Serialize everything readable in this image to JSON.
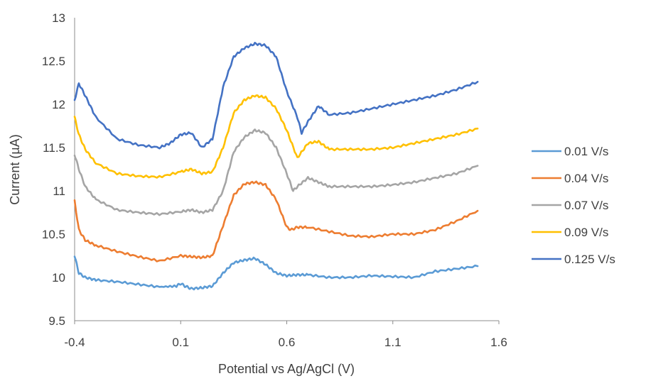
{
  "chart_data": {
    "type": "line",
    "title": "",
    "xlabel": "Potential vs Ag/AgCl (V)",
    "ylabel": "Current (µA)",
    "xlim": [
      -0.4,
      1.6
    ],
    "ylim": [
      9.5,
      13
    ],
    "x_ticks": [
      "-0.4",
      "0.1",
      "0.6",
      "1.1",
      "1.6"
    ],
    "y_ticks": [
      "9.5",
      "10",
      "10.5",
      "11",
      "11.5",
      "12",
      "12.5",
      "13"
    ],
    "grid": false,
    "legend_position": "right",
    "series": [
      {
        "name": "0.01 V/s",
        "color": "#5B9BD5",
        "x": [
          -0.4,
          -0.38,
          -0.35,
          -0.3,
          -0.2,
          -0.1,
          0.0,
          0.08,
          0.1,
          0.12,
          0.15,
          0.2,
          0.25,
          0.3,
          0.35,
          0.4,
          0.45,
          0.5,
          0.55,
          0.6,
          0.65,
          0.7,
          0.8,
          0.9,
          1.0,
          1.1,
          1.2,
          1.3,
          1.4,
          1.5
        ],
        "y": [
          10.25,
          10.05,
          10.0,
          9.97,
          9.95,
          9.92,
          9.89,
          9.9,
          9.93,
          9.9,
          9.87,
          9.88,
          9.9,
          10.05,
          10.17,
          10.2,
          10.22,
          10.15,
          10.05,
          10.02,
          10.03,
          10.03,
          10.0,
          10.0,
          10.02,
          10.01,
          10.0,
          10.07,
          10.1,
          10.13
        ]
      },
      {
        "name": "0.04 V/s",
        "color": "#ED7D31",
        "x": [
          -0.4,
          -0.38,
          -0.35,
          -0.3,
          -0.2,
          -0.1,
          0.0,
          0.1,
          0.15,
          0.2,
          0.25,
          0.3,
          0.35,
          0.4,
          0.45,
          0.5,
          0.55,
          0.6,
          0.62,
          0.65,
          0.7,
          0.8,
          0.9,
          1.0,
          1.1,
          1.2,
          1.3,
          1.4,
          1.5
        ],
        "y": [
          10.88,
          10.55,
          10.43,
          10.37,
          10.3,
          10.24,
          10.19,
          10.25,
          10.24,
          10.23,
          10.25,
          10.6,
          10.95,
          11.08,
          11.1,
          11.07,
          10.9,
          10.58,
          10.55,
          10.58,
          10.58,
          10.53,
          10.48,
          10.47,
          10.5,
          10.5,
          10.55,
          10.65,
          10.77
        ]
      },
      {
        "name": "0.07 V/s",
        "color": "#A5A5A5",
        "x": [
          -0.4,
          -0.38,
          -0.35,
          -0.3,
          -0.2,
          -0.1,
          0.0,
          0.1,
          0.15,
          0.2,
          0.25,
          0.3,
          0.35,
          0.4,
          0.45,
          0.5,
          0.55,
          0.6,
          0.63,
          0.65,
          0.7,
          0.75,
          0.8,
          0.9,
          1.0,
          1.1,
          1.2,
          1.3,
          1.4,
          1.5
        ],
        "y": [
          11.42,
          11.25,
          11.05,
          10.9,
          10.78,
          10.75,
          10.73,
          10.76,
          10.78,
          10.75,
          10.78,
          11.0,
          11.45,
          11.62,
          11.7,
          11.67,
          11.5,
          11.2,
          11.0,
          11.05,
          11.15,
          11.1,
          11.05,
          11.05,
          11.05,
          11.07,
          11.1,
          11.15,
          11.2,
          11.29
        ]
      },
      {
        "name": "0.09 V/s",
        "color": "#FFC000",
        "x": [
          -0.4,
          -0.38,
          -0.35,
          -0.3,
          -0.2,
          -0.1,
          0.0,
          0.1,
          0.15,
          0.2,
          0.25,
          0.3,
          0.35,
          0.4,
          0.45,
          0.5,
          0.55,
          0.6,
          0.65,
          0.7,
          0.75,
          0.8,
          0.9,
          1.0,
          1.1,
          1.2,
          1.3,
          1.4,
          1.5
        ],
        "y": [
          11.85,
          11.65,
          11.48,
          11.32,
          11.2,
          11.17,
          11.16,
          11.22,
          11.25,
          11.2,
          11.22,
          11.5,
          11.9,
          12.05,
          12.1,
          12.08,
          11.95,
          11.7,
          11.38,
          11.55,
          11.57,
          11.48,
          11.48,
          11.48,
          11.5,
          11.55,
          11.6,
          11.65,
          11.72
        ]
      },
      {
        "name": "0.125 V/s",
        "color": "#4472C4",
        "x": [
          -0.4,
          -0.38,
          -0.35,
          -0.3,
          -0.2,
          -0.1,
          0.0,
          0.05,
          0.1,
          0.15,
          0.2,
          0.25,
          0.3,
          0.35,
          0.4,
          0.45,
          0.5,
          0.55,
          0.6,
          0.65,
          0.67,
          0.7,
          0.75,
          0.8,
          0.9,
          1.0,
          1.1,
          1.2,
          1.3,
          1.4,
          1.5
        ],
        "y": [
          12.05,
          12.24,
          12.1,
          11.85,
          11.6,
          11.53,
          11.5,
          11.55,
          11.65,
          11.67,
          11.5,
          11.6,
          12.2,
          12.55,
          12.65,
          12.7,
          12.68,
          12.55,
          12.15,
          11.85,
          11.67,
          11.8,
          11.98,
          11.88,
          11.9,
          11.95,
          12.0,
          12.05,
          12.1,
          12.17,
          12.26
        ]
      }
    ]
  }
}
